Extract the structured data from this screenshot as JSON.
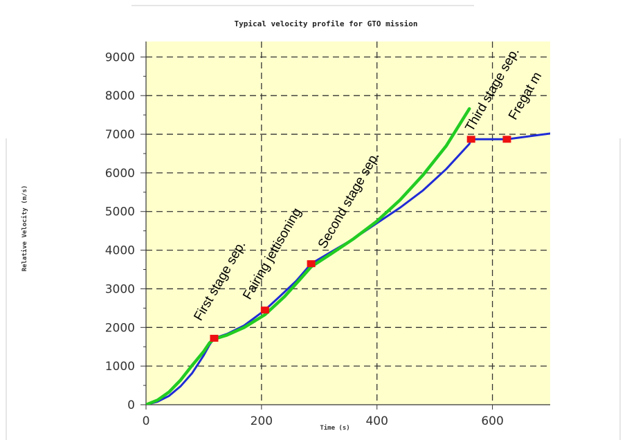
{
  "chart_data": {
    "type": "line",
    "title": "Typical velocity profile for GTO mission",
    "xlabel": "Time (s)",
    "ylabel": "Relative Velocity (m/s)",
    "xlim": [
      0,
      700
    ],
    "ylim": [
      0,
      9400
    ],
    "x_ticks": [
      "0",
      "200",
      "400",
      "600"
    ],
    "x_tick_values": [
      0,
      200,
      400,
      600
    ],
    "y_ticks": [
      "0",
      "1000",
      "2000",
      "3000",
      "4000",
      "5000",
      "6000",
      "7000",
      "8000",
      "9000"
    ],
    "y_tick_values": [
      0,
      1000,
      2000,
      3000,
      4000,
      5000,
      6000,
      7000,
      8000,
      9000
    ],
    "grid": true,
    "series": [
      {
        "color": "#1f2bd6",
        "x": [
          0,
          20,
          40,
          60,
          80,
          100,
          110,
          118,
          140,
          170,
          206,
          230,
          260,
          286,
          320,
          360,
          400,
          440,
          480,
          520,
          560,
          563,
          590,
          625,
          650,
          680,
          700
        ],
        "y": [
          0,
          80,
          230,
          480,
          820,
          1280,
          1550,
          1720,
          1830,
          2050,
          2450,
          2780,
          3200,
          3650,
          3950,
          4300,
          4700,
          5100,
          5550,
          6100,
          6750,
          6870,
          6870,
          6870,
          6920,
          6980,
          7020
        ]
      },
      {
        "color": "#22cc22",
        "x": [
          0,
          20,
          40,
          60,
          80,
          100,
          110,
          118,
          140,
          170,
          206,
          240,
          270,
          286,
          320,
          360,
          400,
          440,
          480,
          520,
          560
        ],
        "y": [
          0,
          120,
          330,
          640,
          1020,
          1380,
          1600,
          1700,
          1800,
          2000,
          2330,
          2800,
          3300,
          3570,
          3900,
          4300,
          4750,
          5300,
          5950,
          6700,
          7660
        ]
      }
    ],
    "markers": [
      {
        "x": 118,
        "y": 1720,
        "color": "#ee1111"
      },
      {
        "x": 206,
        "y": 2450,
        "color": "#ee1111"
      },
      {
        "x": 286,
        "y": 3650,
        "color": "#ee1111"
      },
      {
        "x": 563,
        "y": 6870,
        "color": "#ee1111"
      },
      {
        "x": 625,
        "y": 6870,
        "color": "#ee1111"
      }
    ],
    "annotations": [
      {
        "text": "First stage sep.",
        "x": 95,
        "y": 2150
      },
      {
        "text": "Fairing jettisoning",
        "x": 180,
        "y": 2700
      },
      {
        "text": "Second stage sep.",
        "x": 310,
        "y": 4020
      },
      {
        "text": "Third stage sep.",
        "x": 565,
        "y": 7050
      },
      {
        "text": "Fregat m",
        "x": 640,
        "y": 7350
      }
    ],
    "plot_background": "#ffffcc",
    "grid_color": "#333333"
  }
}
